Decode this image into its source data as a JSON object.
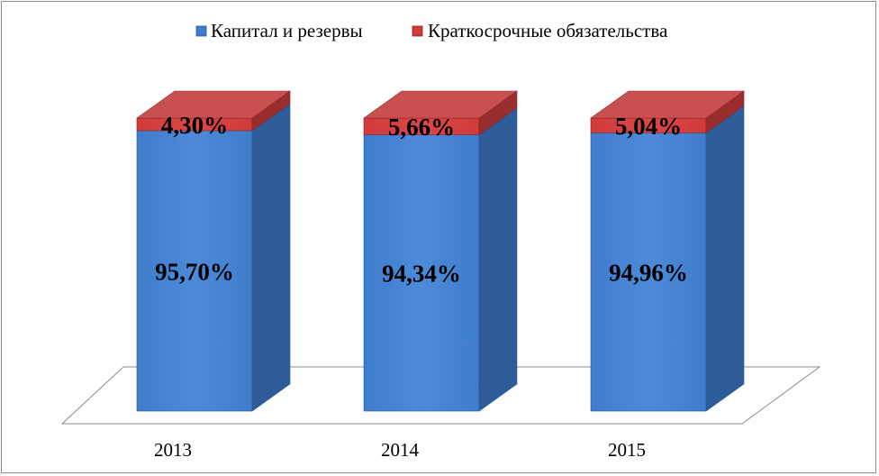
{
  "chart_data": {
    "type": "bar",
    "stacked": true,
    "style": "3d-column-100-percent",
    "categories": [
      "2013",
      "2014",
      "2015"
    ],
    "series": [
      {
        "name": "Капитал и резервы",
        "values": [
          95.7,
          94.34,
          94.96
        ],
        "labels": [
          "95,70%",
          "94,34%",
          "94,96%"
        ],
        "color": "#4a86d4"
      },
      {
        "name": "Краткосрочные обязательства",
        "values": [
          4.3,
          5.66,
          5.04
        ],
        "labels": [
          "4,30%",
          "5,66%",
          "5,04%"
        ],
        "color": "#d94444"
      }
    ],
    "title": "",
    "xlabel": "",
    "ylabel": "",
    "legend_position": "top",
    "grid": false
  }
}
